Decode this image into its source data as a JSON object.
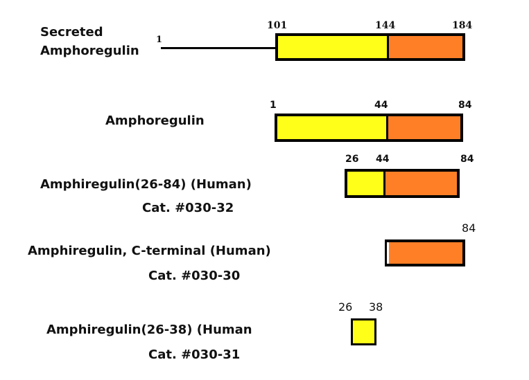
{
  "colors": {
    "n_terminal": "#ffff1a",
    "c_terminal": "#ff7f27",
    "outline": "#000000"
  },
  "constructs": [
    {
      "label_line1": "Secreted",
      "label_line2": "Amphoregulin",
      "start_label": "1",
      "ticks": [
        "101",
        "144",
        "184"
      ]
    },
    {
      "label": "Amphoregulin",
      "ticks": [
        "1",
        "44",
        "84"
      ]
    },
    {
      "label": "Amphiregulin(26-84) (Human)",
      "catalog": "Cat.  #030-32",
      "ticks": [
        "26",
        "44",
        "84"
      ]
    },
    {
      "label": "Amphiregulin, C-terminal (Human)",
      "catalog": "Cat.  #030-30",
      "ticks": [
        "84"
      ]
    },
    {
      "label_prefix": "Amphiregulin(26-",
      "label_suffix": "38)  (Human",
      "catalog": "Cat.  #030-31",
      "ticks": [
        "26",
        "38"
      ]
    }
  ]
}
